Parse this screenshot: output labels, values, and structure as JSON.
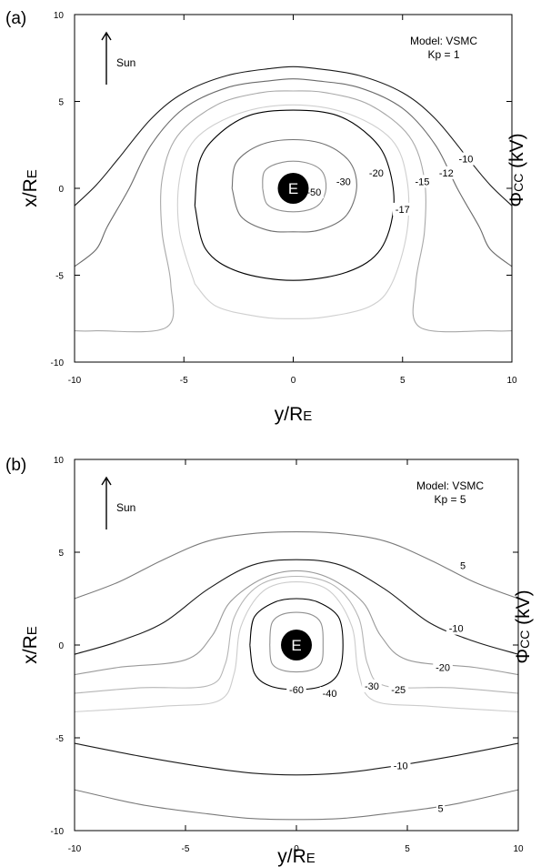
{
  "chart_data": [
    {
      "type": "contour",
      "panel_label": "(a)",
      "model_text": "Model: VSMC",
      "kp_text": "Kp = 1",
      "sun_label": "Sun",
      "earth_label": "E",
      "xlabel": "y/R",
      "xlabel_sub": "E",
      "ylabel": "x/R",
      "ylabel_sub": "E",
      "colorbar_label": "Φ",
      "colorbar_label_sub": "CC",
      "colorbar_label_unit": " (kV)",
      "xlim": [
        -10,
        10
      ],
      "ylim": [
        -10,
        10
      ],
      "xticks": [
        -10,
        -5,
        0,
        5,
        10
      ],
      "yticks": [
        -10,
        -5,
        0,
        5,
        10
      ],
      "levels": [
        {
          "label": "-10",
          "color": "#1a1a1a",
          "points": [
            [
              -10,
              -1.0
            ],
            [
              -9,
              0.2
            ],
            [
              -8,
              1.7
            ],
            [
              -6.5,
              4.0
            ],
            [
              -5,
              5.5
            ],
            [
              -3,
              6.5
            ],
            [
              -1,
              6.9
            ],
            [
              0,
              7.0
            ],
            [
              1,
              6.9
            ],
            [
              3,
              6.5
            ],
            [
              5,
              5.5
            ],
            [
              6.5,
              4.0
            ],
            [
              8,
              1.7
            ],
            [
              9,
              0.2
            ],
            [
              10,
              -1.0
            ]
          ],
          "label_at": [
            7.9,
            1.7
          ]
        },
        {
          "label": "-12",
          "color": "#6a6a6a",
          "points": [
            [
              -10,
              -4.5
            ],
            [
              -9,
              -3.5
            ],
            [
              -8.5,
              -2.2
            ],
            [
              -7.5,
              0.0
            ],
            [
              -6.5,
              2.5
            ],
            [
              -5,
              4.6
            ],
            [
              -3,
              5.8
            ],
            [
              -1,
              6.2
            ],
            [
              0,
              6.3
            ],
            [
              1,
              6.2
            ],
            [
              3,
              5.8
            ],
            [
              5,
              4.6
            ],
            [
              6.5,
              2.5
            ],
            [
              7.5,
              0.0
            ],
            [
              8.5,
              -2.2
            ],
            [
              9,
              -3.5
            ],
            [
              10,
              -4.5
            ]
          ],
          "label_at": [
            7.0,
            0.9
          ]
        },
        {
          "label": "-15",
          "color": "#a8a8a8",
          "points": [
            [
              -10,
              -8.2
            ],
            [
              -9,
              -8.2
            ],
            [
              -5.8,
              -8.0
            ],
            [
              -5.6,
              -5.5
            ],
            [
              -6,
              -2.5
            ],
            [
              -6,
              0.5
            ],
            [
              -5.3,
              3.0
            ],
            [
              -3.5,
              4.8
            ],
            [
              -1.5,
              5.5
            ],
            [
              0,
              5.6
            ],
            [
              1.5,
              5.5
            ],
            [
              3.5,
              4.8
            ],
            [
              5.3,
              3.0
            ],
            [
              6,
              0.5
            ],
            [
              6,
              -2.5
            ],
            [
              5.6,
              -5.5
            ],
            [
              5.8,
              -8.0
            ],
            [
              9,
              -8.2
            ],
            [
              10,
              -8.2
            ]
          ],
          "label_at": [
            5.9,
            0.4
          ]
        },
        {
          "label": "-17",
          "color": "#cfcfcf",
          "points": [
            [
              -4.5,
              -5.5
            ],
            [
              -5.2,
              -2.5
            ],
            [
              -5.2,
              0.5
            ],
            [
              -4.5,
              2.8
            ],
            [
              -2.5,
              4.3
            ],
            [
              0,
              4.8
            ],
            [
              2.5,
              4.3
            ],
            [
              4.5,
              2.8
            ],
            [
              5.2,
              0.5
            ],
            [
              5.2,
              -2.5
            ],
            [
              4.5,
              -5.5
            ],
            [
              3.5,
              -6.8
            ],
            [
              1.5,
              -7.4
            ],
            [
              0,
              -7.5
            ],
            [
              -1.5,
              -7.4
            ],
            [
              -3.5,
              -6.8
            ],
            [
              -4.5,
              -5.5
            ]
          ],
          "label_at": [
            5.0,
            -1.2
          ]
        },
        {
          "label": "-20",
          "color": "#000000",
          "points": [
            [
              -4.5,
              -1.0
            ],
            [
              -4.3,
              1.5
            ],
            [
              -3.5,
              3.0
            ],
            [
              -2,
              4.2
            ],
            [
              0,
              4.5
            ],
            [
              2,
              4.2
            ],
            [
              3.5,
              3.0
            ],
            [
              4.3,
              1.5
            ],
            [
              4.6,
              -1.0
            ],
            [
              4,
              -3.5
            ],
            [
              2.5,
              -4.8
            ],
            [
              0,
              -5.3
            ],
            [
              -2.5,
              -4.8
            ],
            [
              -4,
              -3.5
            ],
            [
              -4.5,
              -1.0
            ]
          ],
          "label_at": [
            3.8,
            0.9
          ]
        },
        {
          "label": "-30",
          "color": "#707070",
          "points": [
            [
              -2.8,
              0.0
            ],
            [
              -2.6,
              1.5
            ],
            [
              -1.5,
              2.5
            ],
            [
              0,
              2.8
            ],
            [
              1.5,
              2.5
            ],
            [
              2.6,
              1.5
            ],
            [
              2.9,
              0.0
            ],
            [
              2.4,
              -1.6
            ],
            [
              1.2,
              -2.4
            ],
            [
              0,
              -2.5
            ],
            [
              -1.2,
              -2.4
            ],
            [
              -2.4,
              -1.6
            ],
            [
              -2.8,
              0.0
            ]
          ],
          "label_at": [
            2.3,
            0.4
          ]
        },
        {
          "label": "-50",
          "color": "#909090",
          "points": [
            [
              -1.4,
              0.0
            ],
            [
              -1.3,
              1.0
            ],
            [
              -0.5,
              1.5
            ],
            [
              0.5,
              1.5
            ],
            [
              1.3,
              1.0
            ],
            [
              1.5,
              0.0
            ],
            [
              1.2,
              -0.9
            ],
            [
              0.5,
              -1.3
            ],
            [
              -0.5,
              -1.3
            ],
            [
              -1.2,
              -0.9
            ],
            [
              -1.4,
              0.0
            ]
          ],
          "label_at": [
            0.95,
            -0.2
          ]
        }
      ]
    },
    {
      "type": "contour",
      "panel_label": "(b)",
      "model_text": "Model: VSMC",
      "kp_text": "Kp = 5",
      "sun_label": "Sun",
      "earth_label": "E",
      "xlabel": "y/R",
      "xlabel_sub": "E",
      "ylabel": "x/R",
      "ylabel_sub": "E",
      "colorbar_label": "Φ",
      "colorbar_label_sub": "CC",
      "colorbar_label_unit": " (kV)",
      "xlim": [
        -10,
        10
      ],
      "ylim": [
        -10,
        10
      ],
      "xticks": [
        -10,
        -5,
        0,
        5,
        10
      ],
      "yticks": [
        -10,
        -5,
        0,
        5,
        10
      ],
      "levels": [
        {
          "label": "5",
          "color": "#7a7a7a",
          "points": [
            [
              -10,
              2.5
            ],
            [
              -8,
              3.4
            ],
            [
              -6,
              4.6
            ],
            [
              -4,
              5.6
            ],
            [
              -2,
              6.0
            ],
            [
              0,
              6.1
            ],
            [
              2,
              6.0
            ],
            [
              4,
              5.6
            ],
            [
              6,
              4.6
            ],
            [
              8,
              3.4
            ],
            [
              10,
              2.5
            ]
          ],
          "label_at": [
            7.5,
            4.3
          ]
        },
        {
          "label": "-10",
          "color": "#1a1a1a",
          "points": [
            [
              -10,
              -0.5
            ],
            [
              -8,
              0.2
            ],
            [
              -6,
              1.2
            ],
            [
              -4,
              3.0
            ],
            [
              -2,
              4.3
            ],
            [
              0,
              4.6
            ],
            [
              2,
              4.3
            ],
            [
              4,
              3.0
            ],
            [
              6,
              1.2
            ],
            [
              8,
              0.2
            ],
            [
              10,
              -0.5
            ]
          ],
          "label_at": [
            7.2,
            0.9
          ]
        },
        {
          "label": "-20",
          "color": "#9a9a9a",
          "points": [
            [
              -10,
              -1.6
            ],
            [
              -8,
              -1.2
            ],
            [
              -5,
              -0.8
            ],
            [
              -3.8,
              0.5
            ],
            [
              -3,
              2.3
            ],
            [
              -1.5,
              3.6
            ],
            [
              0,
              4.0
            ],
            [
              1.5,
              3.6
            ],
            [
              3,
              2.3
            ],
            [
              3.8,
              0.5
            ],
            [
              5,
              -0.8
            ],
            [
              8,
              -1.2
            ],
            [
              10,
              -1.6
            ]
          ],
          "label_at": [
            6.6,
            -1.2
          ]
        },
        {
          "label": "-25",
          "color": "#b5b5b5",
          "points": [
            [
              -10,
              -2.6
            ],
            [
              -7,
              -2.3
            ],
            [
              -4,
              -2.2
            ],
            [
              -3.2,
              -1.0
            ],
            [
              -2.8,
              1.5
            ],
            [
              -1.7,
              3.2
            ],
            [
              0,
              3.7
            ],
            [
              1.7,
              3.2
            ],
            [
              2.8,
              1.5
            ],
            [
              3.2,
              -1.0
            ],
            [
              4,
              -2.2
            ],
            [
              7,
              -2.3
            ],
            [
              10,
              -2.6
            ]
          ],
          "label_at": [
            4.6,
            -2.4
          ]
        },
        {
          "label": "-30",
          "color": "#cccccc",
          "points": [
            [
              -10,
              -3.6
            ],
            [
              -6,
              -3.3
            ],
            [
              -3.5,
              -3.0
            ],
            [
              -2.8,
              -1.5
            ],
            [
              -2.5,
              1.0
            ],
            [
              -1.5,
              2.9
            ],
            [
              0,
              3.4
            ],
            [
              1.5,
              2.9
            ],
            [
              2.5,
              1.0
            ],
            [
              2.8,
              -1.5
            ],
            [
              3.5,
              -3.0
            ],
            [
              6,
              -3.3
            ],
            [
              10,
              -3.6
            ]
          ],
          "label_at": [
            3.4,
            -2.2
          ]
        },
        {
          "label": "-40",
          "color": "#000000",
          "points": [
            [
              -2.1,
              0.0
            ],
            [
              -1.9,
              1.5
            ],
            [
              -1.0,
              2.3
            ],
            [
              0,
              2.5
            ],
            [
              1.0,
              2.3
            ],
            [
              1.9,
              1.5
            ],
            [
              2.1,
              0.0
            ],
            [
              1.9,
              -1.5
            ],
            [
              1.2,
              -2.2
            ],
            [
              0,
              -2.4
            ],
            [
              -1.2,
              -2.2
            ],
            [
              -1.9,
              -1.5
            ],
            [
              -2.1,
              0.0
            ]
          ],
          "label_at": [
            1.5,
            -2.6
          ]
        },
        {
          "label": "-60",
          "color": "#909090",
          "points": [
            [
              -1.2,
              0.0
            ],
            [
              -1.1,
              1.2
            ],
            [
              -0.5,
              1.7
            ],
            [
              0.5,
              1.7
            ],
            [
              1.1,
              1.2
            ],
            [
              1.2,
              0.0
            ],
            [
              1.1,
              -1.0
            ],
            [
              0.5,
              -1.4
            ],
            [
              -0.5,
              -1.4
            ],
            [
              -1.1,
              -1.0
            ],
            [
              -1.2,
              0.0
            ]
          ],
          "label_at": [
            0.0,
            -2.4
          ]
        },
        {
          "label": "-10",
          "color": "#1a1a1a",
          "points": [
            [
              -10,
              -5.3
            ],
            [
              -7,
              -6.0
            ],
            [
              -4,
              -6.6
            ],
            [
              -2,
              -6.9
            ],
            [
              0,
              -7.0
            ],
            [
              2,
              -6.9
            ],
            [
              4,
              -6.6
            ],
            [
              7,
              -6.0
            ],
            [
              10,
              -5.3
            ]
          ],
          "label_at": [
            4.7,
            -6.5
          ]
        },
        {
          "label": "5",
          "color": "#7a7a7a",
          "points": [
            [
              -10,
              -7.8
            ],
            [
              -7,
              -8.6
            ],
            [
              -4,
              -9.1
            ],
            [
              -2,
              -9.35
            ],
            [
              0,
              -9.4
            ],
            [
              2,
              -9.35
            ],
            [
              4,
              -9.1
            ],
            [
              7,
              -8.6
            ],
            [
              10,
              -7.8
            ]
          ],
          "label_at": [
            6.5,
            -8.8
          ]
        }
      ]
    }
  ]
}
